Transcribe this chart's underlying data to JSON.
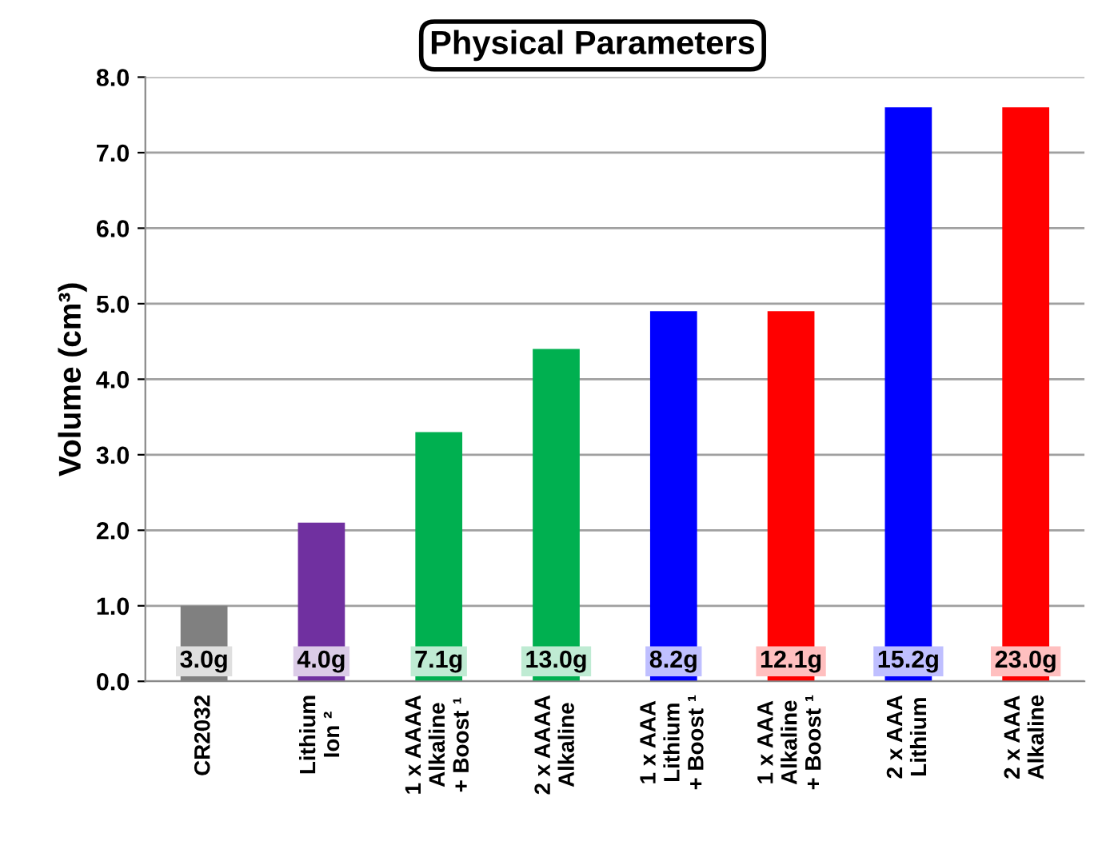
{
  "chart_data": {
    "type": "bar",
    "title": "Physical Parameters",
    "ylabel": "Volume (cm³)",
    "categories": [
      "CR2032",
      "Lithium\nIon ²",
      "1 x AAAA\nAlkaline\n+ Boost ¹",
      "2 x AAAA\nAlkaline",
      "1 x AAA\nLithium\n+ Boost ¹",
      "1 x AAA\nAlkaline\n+ Boost ¹",
      "2 x AAA\nLithium",
      "2 x AAA\nAlkaline"
    ],
    "values": [
      1.0,
      2.1,
      3.3,
      4.4,
      4.9,
      4.9,
      7.6,
      7.6
    ],
    "colors": [
      "#808080",
      "#7030a0",
      "#00b050",
      "#00b050",
      "#0000ff",
      "#ff0000",
      "#0000ff",
      "#ff0000"
    ],
    "ylim": [
      0,
      8
    ],
    "yticks": [
      {
        "value": 0,
        "label": "0.0"
      },
      {
        "value": 1,
        "label": "1.0"
      },
      {
        "value": 2,
        "label": "2.0"
      },
      {
        "value": 3,
        "label": "3.0"
      },
      {
        "value": 4,
        "label": "4.0"
      },
      {
        "value": 5,
        "label": "5.0"
      },
      {
        "value": 6,
        "label": "6.0"
      },
      {
        "value": 7,
        "label": "7.0"
      },
      {
        "value": 8,
        "label": "8.0"
      }
    ],
    "grid": "y",
    "annotations": [
      "3.0g",
      "4.0g",
      "7.1g",
      "13.0g",
      "8.2g",
      "12.1g",
      "15.2g",
      "23.0g"
    ]
  }
}
